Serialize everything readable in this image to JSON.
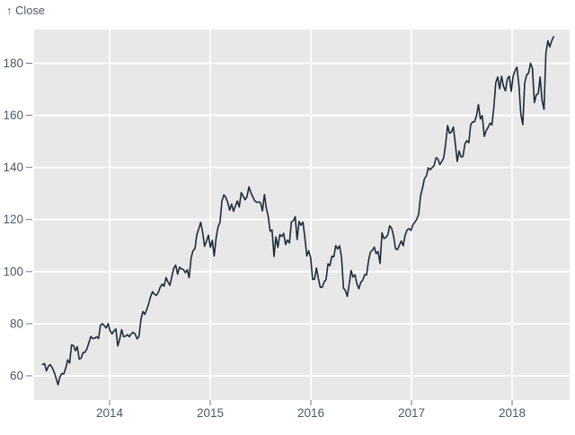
{
  "header": {
    "label": "↑ Close"
  },
  "chart_data": {
    "type": "line",
    "title": "",
    "ylabel": "Close",
    "xlabel": "",
    "legend": "none",
    "grid": true,
    "x_unit": "year (decimal)",
    "x_axis": {
      "tick_values": [
        2014,
        2015,
        2016,
        2017,
        2018
      ],
      "tick_labels": [
        "2014",
        "2015",
        "2016",
        "2017",
        "2018"
      ]
    },
    "y_axis": {
      "tick_values": [
        60,
        80,
        100,
        120,
        140,
        160,
        180
      ],
      "tick_labels": [
        "60",
        "80",
        "100",
        "120",
        "140",
        "160",
        "180"
      ],
      "range_shown": [
        50,
        193
      ]
    },
    "colors": {
      "line": "#1c2b3a",
      "plot_background": "#e8e8e8",
      "gridline": "#ffffff",
      "axis_text": "#4d5866",
      "tick_mark": "#707a85"
    },
    "series": [
      {
        "name": "Close",
        "x_start_year": 2013.334,
        "x_step_years": 0.019165,
        "values": [
          64.3,
          64.7,
          61.9,
          63.6,
          64.3,
          63.1,
          61.4,
          59.1,
          56.6,
          59.6,
          60.9,
          60.7,
          63.0,
          66.1,
          64.9,
          71.8,
          71.6,
          69.6,
          71.2,
          66.4,
          66.8,
          69.0,
          69.0,
          70.4,
          72.7,
          75.1,
          74.3,
          74.4,
          75.0,
          74.3,
          79.4,
          80.0,
          79.2,
          78.4,
          80.0,
          77.3,
          76.1,
          77.2,
          78.0,
          71.5,
          74.2,
          77.7,
          75.0,
          75.2,
          75.8,
          75.0,
          76.1,
          76.7,
          76.0,
          74.2,
          75.1,
          81.7,
          84.7,
          83.6,
          85.4,
          87.7,
          90.4,
          92.3,
          91.3,
          90.9,
          92.0,
          94.0,
          95.2,
          94.4,
          97.7,
          96.1,
          94.7,
          98.0,
          101.3,
          102.5,
          99.0,
          101.7,
          101.0,
          100.8,
          99.6,
          100.7,
          97.7,
          105.2,
          108.0,
          108.9,
          114.2,
          116.5,
          118.9,
          115.0,
          109.7,
          111.8,
          114.0,
          109.3,
          112.0,
          106.0,
          113.0,
          117.2,
          118.9,
          127.1,
          129.5,
          128.5,
          126.6,
          123.6,
          125.9,
          123.2,
          125.3,
          127.1,
          124.8,
          130.3,
          129.0,
          127.6,
          128.8,
          132.5,
          130.3,
          128.7,
          127.2,
          126.6,
          126.8,
          126.4,
          123.3,
          129.6,
          124.5,
          121.3,
          115.5,
          116.0,
          105.8,
          113.3,
          109.3,
          114.2,
          113.5,
          114.7,
          110.4,
          112.1,
          111.0,
          119.1,
          119.5,
          121.1,
          112.3,
          119.3,
          117.8,
          119.0,
          113.2,
          106.0,
          108.0,
          105.3,
          97.0,
          97.1,
          101.4,
          97.3,
          94.0,
          94.0,
          96.0,
          96.9,
          103.0,
          102.3,
          105.9,
          105.7,
          110.0,
          108.7,
          109.9,
          105.7,
          93.7,
          92.7,
          90.5,
          95.2,
          100.4,
          97.9,
          98.8,
          95.3,
          93.4,
          95.9,
          96.7,
          98.8,
          98.7,
          104.2,
          107.5,
          108.2,
          109.4,
          106.9,
          107.7,
          103.1,
          114.9,
          112.7,
          113.1,
          114.1,
          117.6,
          116.6,
          113.7,
          108.8,
          108.4,
          110.1,
          111.8,
          109.9,
          114.0,
          116.0,
          116.5,
          115.8,
          117.9,
          119.0,
          120.0,
          122.0,
          129.1,
          132.1,
          135.7,
          136.7,
          139.8,
          139.1,
          140.0,
          140.6,
          143.7,
          143.3,
          141.1,
          142.3,
          143.7,
          149.0,
          156.1,
          153.1,
          153.6,
          155.5,
          149.0,
          142.3,
          146.3,
          144.0,
          144.2,
          149.0,
          150.3,
          149.5,
          156.4,
          157.5,
          157.5,
          159.9,
          164.1,
          158.6,
          159.9,
          151.9,
          154.1,
          155.3,
          157.0,
          156.3,
          163.1,
          172.5,
          174.7,
          170.2,
          175.0,
          171.1,
          169.4,
          174.0,
          175.0,
          169.2,
          175.0,
          177.1,
          178.5,
          171.5,
          160.5,
          156.4,
          172.4,
          175.5,
          176.2,
          180.0,
          178.0,
          164.9,
          167.8,
          168.4,
          174.7,
          165.7,
          162.3,
          183.8,
          188.6,
          186.3,
          188.6,
          190.2
        ]
      }
    ]
  }
}
